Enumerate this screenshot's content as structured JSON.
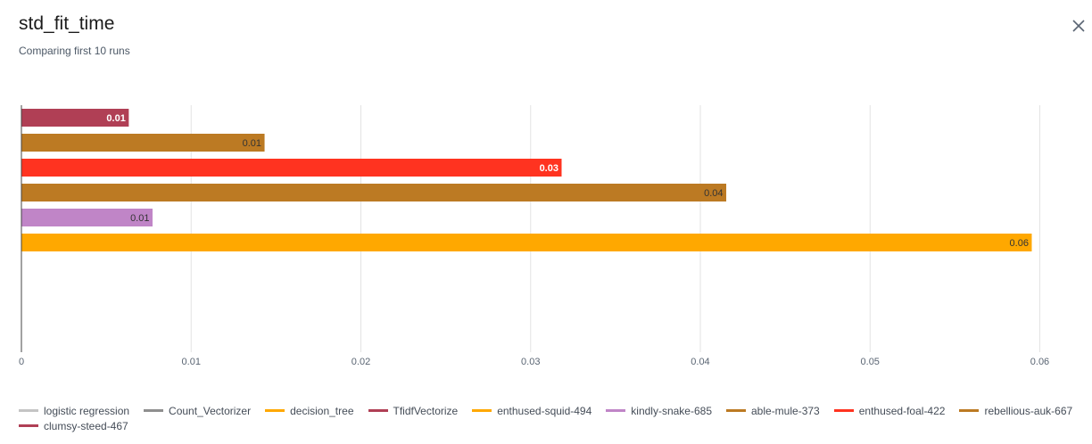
{
  "header": {
    "title": "std_fit_time",
    "subtitle": "Comparing first 10 runs"
  },
  "icons": {
    "close": "close-icon"
  },
  "chart_data": {
    "type": "bar",
    "orientation": "horizontal",
    "title": "std_fit_time",
    "subtitle": "Comparing first 10 runs",
    "xlabel": "",
    "ylabel": "",
    "xlim": [
      0,
      0.0605
    ],
    "xticks": [
      0,
      0.01,
      0.02,
      0.03,
      0.04,
      0.05,
      0.06
    ],
    "xtick_labels": [
      "0",
      "0.01",
      "0.02",
      "0.03",
      "0.04",
      "0.05",
      "0.06"
    ],
    "grid": true,
    "legend_position": "bottom",
    "bars": [
      {
        "series": "TfidfVectorize",
        "value": 0.0063,
        "label": "0.01",
        "color": "#b03f55",
        "label_color": "#ffffff"
      },
      {
        "series": "able-mule-373",
        "value": 0.0143,
        "label": "0.01",
        "color": "#bc7a23",
        "label_color": "#333333"
      },
      {
        "series": "enthused-foal-422",
        "value": 0.0318,
        "label": "0.03",
        "color": "#ff3320",
        "label_color": "#ffffff"
      },
      {
        "series": "rebellious-auk-667",
        "value": 0.0415,
        "label": "0.04",
        "color": "#bc7a23",
        "label_color": "#333333"
      },
      {
        "series": "kindly-snake-685",
        "value": 0.0077,
        "label": "0.01",
        "color": "#c085c7",
        "label_color": "#333333"
      },
      {
        "series": "enthused-squid-494",
        "value": 0.0595,
        "label": "0.06",
        "color": "#ffa800",
        "label_color": "#333333"
      }
    ],
    "legend": [
      {
        "name": "logistic regression",
        "color": "#c4c4c4"
      },
      {
        "name": "Count_Vectorizer",
        "color": "#8f8f8f"
      },
      {
        "name": "decision_tree",
        "color": "#ffa800"
      },
      {
        "name": "TfidfVectorize",
        "color": "#b03f55"
      },
      {
        "name": "enthused-squid-494",
        "color": "#ffa800"
      },
      {
        "name": "kindly-snake-685",
        "color": "#c085c7"
      },
      {
        "name": "able-mule-373",
        "color": "#bc7a23"
      },
      {
        "name": "enthused-foal-422",
        "color": "#ff3320"
      },
      {
        "name": "rebellious-auk-667",
        "color": "#bc7a23"
      },
      {
        "name": "clumsy-steed-467",
        "color": "#b03f55"
      }
    ]
  }
}
